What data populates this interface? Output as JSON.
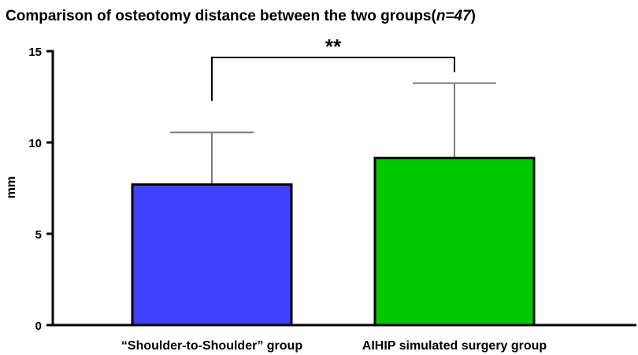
{
  "chart_data": {
    "type": "bar",
    "title_main": "Comparison of osteotomy distance between the two groups(",
    "title_italic": "n=47",
    "title_end": ")",
    "xlabel": "",
    "ylabel": "mm",
    "ylim": [
      0,
      15
    ],
    "yticks": [
      "0",
      "5",
      "10",
      "15"
    ],
    "categories": [
      "“Shoulder-to-Shoulder” group",
      "AIHIP simulated surgery group"
    ],
    "values": [
      7.7,
      9.15
    ],
    "errors": [
      2.85,
      4.1
    ],
    "colors": [
      "#4040ff",
      "#00c800"
    ],
    "significance": "**",
    "grid": false,
    "legend": "none"
  }
}
